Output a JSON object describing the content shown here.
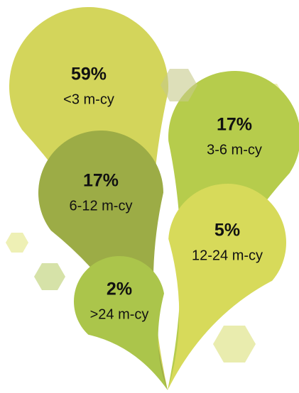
{
  "chart_data": {
    "type": "leaf-bubbles",
    "categories": [
      "<3 m-cy",
      "3-6 m-cy",
      "6-12 m-cy",
      "12-24 m-cy",
      ">24 m-cy"
    ],
    "values": [
      59,
      17,
      17,
      5,
      2
    ],
    "value_labels": [
      "59%",
      "17%",
      "17%",
      "5%",
      "2%"
    ],
    "colors": [
      "#d3d55b",
      "#b6cc4c",
      "#9cac46",
      "#d7da5a",
      "#abc54b"
    ]
  }
}
